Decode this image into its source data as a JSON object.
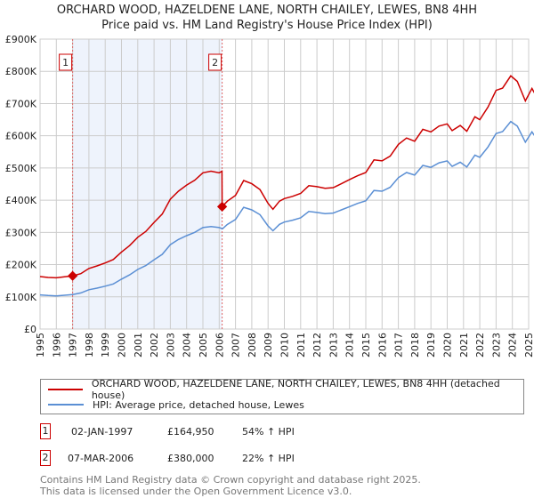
{
  "chart_data": {
    "type": "line",
    "title": "ORCHARD WOOD, HAZELDENE LANE, NORTH CHAILEY, LEWES, BN8 4HH",
    "subtitle": "Price paid vs. HM Land Registry's House Price Index (HPI)",
    "xlim": [
      1995,
      2025
    ],
    "ylim": [
      0,
      900000
    ],
    "x_ticks": [
      "1995",
      "1996",
      "1997",
      "1998",
      "1999",
      "2000",
      "2001",
      "2002",
      "2003",
      "2004",
      "2005",
      "2006",
      "2007",
      "2008",
      "2009",
      "2010",
      "2011",
      "2012",
      "2013",
      "2014",
      "2015",
      "2016",
      "2017",
      "2018",
      "2019",
      "2020",
      "2021",
      "2022",
      "2023",
      "2024",
      "2025"
    ],
    "y_ticks": [
      "£0",
      "£100K",
      "£200K",
      "£300K",
      "£400K",
      "£500K",
      "£600K",
      "£700K",
      "£800K",
      "£900K"
    ],
    "grid": true,
    "series": [
      {
        "name": "ORCHARD WOOD, HAZELDENE LANE, NORTH CHAILEY, LEWES, BN8 4HH (detached house)",
        "color": "#cc0000",
        "x": [
          1995,
          1995.5,
          1996,
          1996.5,
          1997,
          1997.5,
          1998,
          1998.5,
          1999,
          1999.5,
          2000,
          2000.5,
          2001,
          2001.5,
          2002,
          2002.5,
          2003,
          2003.5,
          2004,
          2004.5,
          2005,
          2005.5,
          2006,
          2006.17,
          2006.18,
          2006.5,
          2007,
          2007.5,
          2008,
          2008.5,
          2009,
          2009.3,
          2009.7,
          2010,
          2010.5,
          2011,
          2011.5,
          2012,
          2012.5,
          2013,
          2013.5,
          2014,
          2014.5,
          2015,
          2015.5,
          2016,
          2016.5,
          2017,
          2017.5,
          2018,
          2018.5,
          2019,
          2019.5,
          2020,
          2020.3,
          2020.8,
          2021.2,
          2021.7,
          2022,
          2022.5,
          2023,
          2023.4,
          2023.9,
          2024.3,
          2024.8,
          2025.2,
          2025.5
        ],
        "values": [
          163000,
          160000,
          159000,
          162000,
          165000,
          172000,
          188000,
          196000,
          205000,
          216000,
          239000,
          259000,
          285000,
          303000,
          331000,
          357000,
          403000,
          428000,
          447000,
          462000,
          485000,
          490000,
          485000,
          490000,
          380000,
          397000,
          415000,
          461000,
          451000,
          433000,
          390000,
          372000,
          397000,
          405000,
          412000,
          421000,
          445000,
          442000,
          437000,
          439000,
          451000,
          464000,
          476000,
          486000,
          525000,
          522000,
          537000,
          573000,
          593000,
          583000,
          620000,
          612000,
          630000,
          637000,
          616000,
          632000,
          614000,
          659000,
          650000,
          689000,
          741000,
          748000,
          786000,
          769000,
          708000,
          747000,
          720000
        ]
      },
      {
        "name": "HPI: Average price, detached house, Lewes",
        "color": "#5b8fd4",
        "x": [
          1995,
          1995.5,
          1996,
          1996.5,
          1997,
          1997.5,
          1998,
          1998.5,
          1999,
          1999.5,
          2000,
          2000.5,
          2001,
          2001.5,
          2002,
          2002.5,
          2003,
          2003.5,
          2004,
          2004.5,
          2005,
          2005.5,
          2006,
          2006.2,
          2006.5,
          2007,
          2007.5,
          2008,
          2008.5,
          2009,
          2009.3,
          2009.7,
          2010,
          2010.5,
          2011,
          2011.5,
          2012,
          2012.5,
          2013,
          2013.5,
          2014,
          2014.5,
          2015,
          2015.5,
          2016,
          2016.5,
          2017,
          2017.5,
          2018,
          2018.5,
          2019,
          2019.5,
          2020,
          2020.3,
          2020.8,
          2021.2,
          2021.7,
          2022,
          2022.5,
          2023,
          2023.4,
          2023.9,
          2024.3,
          2024.8,
          2025.2,
          2025.5
        ],
        "values": [
          106000,
          104000,
          103000,
          105000,
          107000,
          112000,
          122000,
          127000,
          133000,
          140000,
          155000,
          168000,
          185000,
          197000,
          215000,
          232000,
          262000,
          278000,
          290000,
          300000,
          315000,
          318000,
          315000,
          311000,
          325000,
          340000,
          378000,
          370000,
          355000,
          320000,
          305000,
          325000,
          332000,
          338000,
          345000,
          365000,
          362000,
          358000,
          360000,
          370000,
          380000,
          390000,
          398000,
          430000,
          428000,
          440000,
          470000,
          486000,
          478000,
          508000,
          502000,
          516000,
          522000,
          505000,
          518000,
          503000,
          540000,
          533000,
          565000,
          607000,
          613000,
          644000,
          630000,
          580000,
          612000,
          590000
        ]
      }
    ],
    "sales": [
      {
        "label": "1",
        "x": 1997.0,
        "value": 164950,
        "date": "02-JAN-1997",
        "price": "£164,950",
        "hpi": "54% ↑ HPI"
      },
      {
        "label": "2",
        "x": 2006.18,
        "value": 380000,
        "date": "07-MAR-2006",
        "price": "£380,000",
        "hpi": "22% ↑ HPI"
      }
    ]
  },
  "footer": {
    "line1": "Contains HM Land Registry data © Crown copyright and database right 2025.",
    "line2": "This data is licensed under the Open Government Licence v3.0."
  }
}
